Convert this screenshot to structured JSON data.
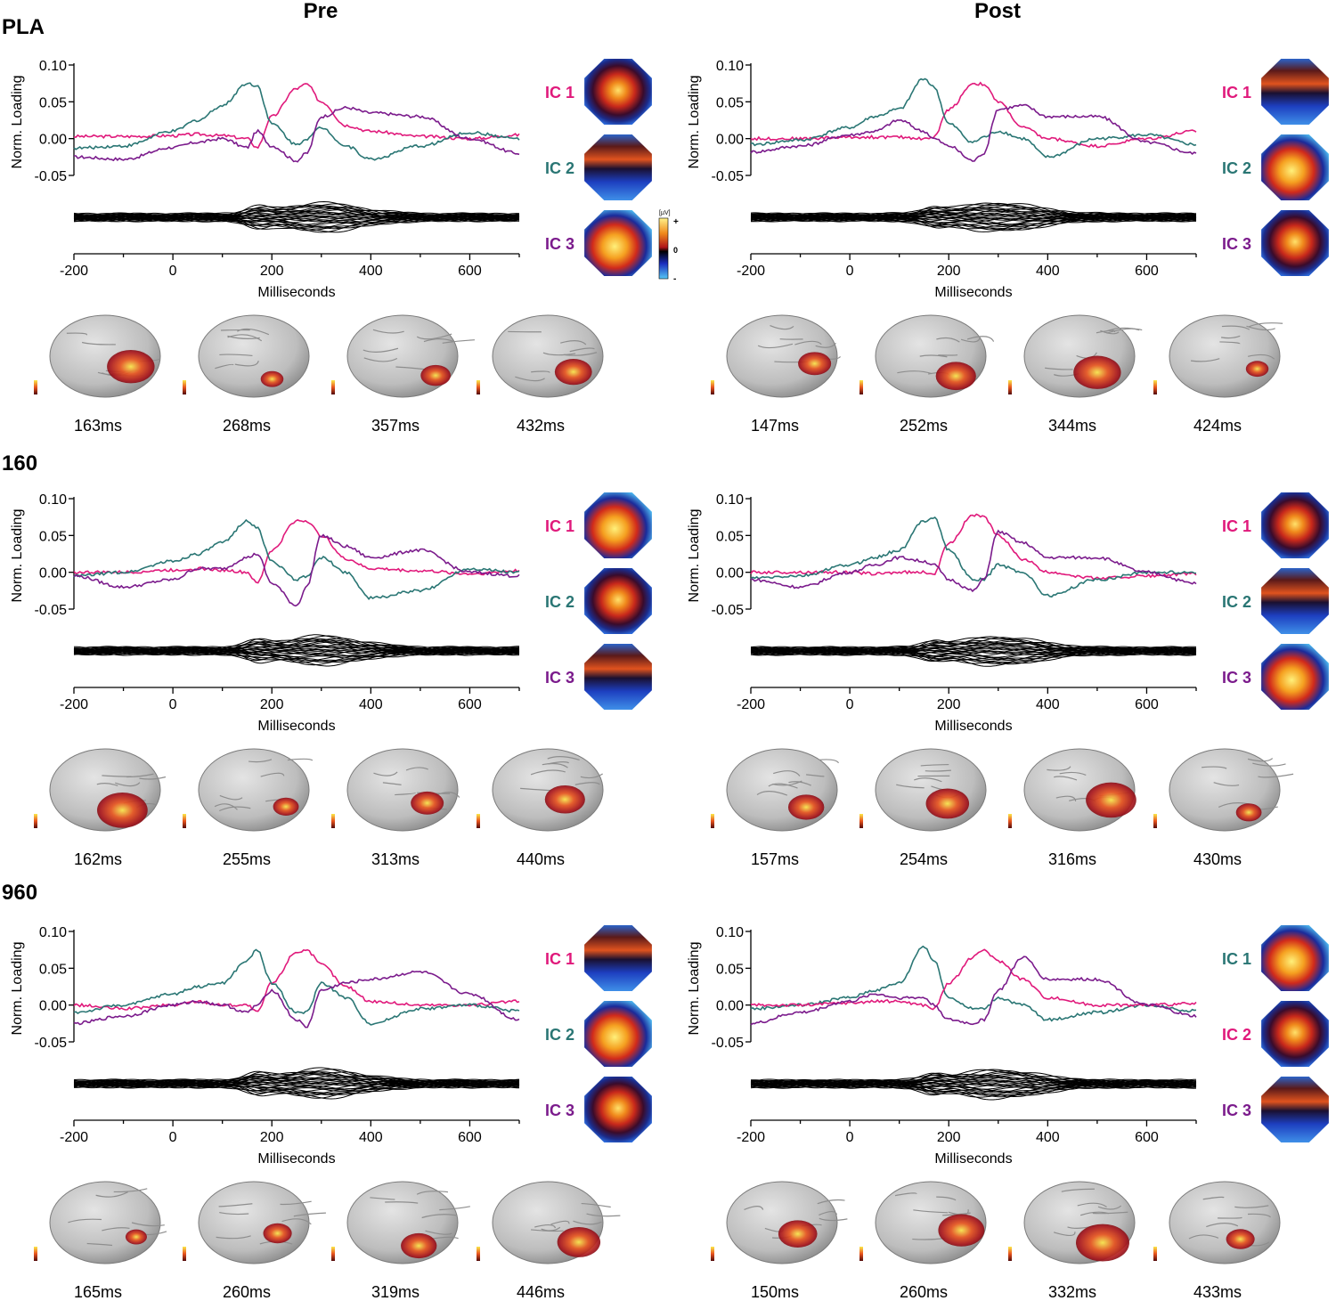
{
  "columns": [
    "Pre",
    "Post"
  ],
  "groups": [
    "PLA",
    "160",
    "960"
  ],
  "axis": {
    "ylabel": "Norm. Loading",
    "xlabel": "Milliseconds",
    "yticks": [
      "0.10",
      "0.05",
      "0.00",
      "-0.05"
    ],
    "xticks": [
      "-200",
      "0",
      "200",
      "400",
      "600"
    ]
  },
  "colorbar": {
    "unit": "[µV]",
    "plus": "+",
    "zero": "0",
    "minus": "-"
  },
  "colors": {
    "ic_pink": "#e0197b",
    "ic_teal": "#2a7674",
    "ic_purple": "#7b1b8c"
  },
  "chart_data": [
    {
      "type": "line",
      "group": "PLA",
      "condition": "Pre",
      "title": "",
      "xlabel": "Milliseconds",
      "ylabel": "Norm. Loading",
      "xlim": [
        -200,
        700
      ],
      "ylim": [
        -0.05,
        0.1
      ],
      "x": [
        -200,
        -100,
        0,
        50,
        100,
        150,
        170,
        200,
        250,
        270,
        300,
        350,
        400,
        500,
        600,
        700
      ],
      "series": [
        {
          "name": "IC 1",
          "color": "pink",
          "values": [
            0.003,
            0.003,
            0.004,
            0.006,
            0.004,
            0.0,
            -0.012,
            0.03,
            0.068,
            0.074,
            0.05,
            0.018,
            0.01,
            0.003,
            0.0,
            0.005
          ]
        },
        {
          "name": "IC 2",
          "color": "teal",
          "values": [
            -0.013,
            -0.01,
            0.01,
            0.025,
            0.045,
            0.075,
            0.072,
            0.02,
            -0.008,
            0.0,
            0.015,
            -0.01,
            -0.028,
            -0.01,
            0.008,
            0.0
          ]
        },
        {
          "name": "IC 3",
          "color": "purple",
          "values": [
            -0.025,
            -0.028,
            -0.012,
            -0.005,
            0.0,
            -0.012,
            0.01,
            -0.01,
            -0.03,
            -0.02,
            0.03,
            0.042,
            0.035,
            0.03,
            0.0,
            -0.02
          ]
        }
      ],
      "ic_labels": [
        {
          "label": "IC 1",
          "color": "pink"
        },
        {
          "label": "IC 2",
          "color": "teal"
        },
        {
          "label": "IC 3",
          "color": "purple"
        }
      ],
      "brain_times": [
        "163ms",
        "268ms",
        "357ms",
        "432ms"
      ]
    },
    {
      "type": "line",
      "group": "PLA",
      "condition": "Post",
      "title": "",
      "xlabel": "Milliseconds",
      "ylabel": "Norm. Loading",
      "xlim": [
        -200,
        700
      ],
      "ylim": [
        -0.05,
        0.1
      ],
      "x": [
        -200,
        -100,
        0,
        50,
        100,
        150,
        170,
        200,
        250,
        270,
        300,
        350,
        400,
        500,
        600,
        700
      ],
      "series": [
        {
          "name": "IC 1",
          "color": "pink",
          "values": [
            0.0,
            0.0,
            0.002,
            0.002,
            0.002,
            0.0,
            0.002,
            0.04,
            0.075,
            0.074,
            0.05,
            0.015,
            0.0,
            -0.01,
            0.0,
            0.01
          ]
        },
        {
          "name": "IC 2",
          "color": "teal",
          "values": [
            -0.008,
            -0.002,
            0.015,
            0.03,
            0.04,
            0.082,
            0.07,
            0.02,
            -0.005,
            0.002,
            0.01,
            0.0,
            -0.025,
            0.0,
            0.005,
            -0.008
          ]
        },
        {
          "name": "IC 3",
          "color": "purple",
          "values": [
            -0.018,
            -0.01,
            0.005,
            0.01,
            0.025,
            0.01,
            0.0,
            -0.01,
            -0.03,
            -0.02,
            0.04,
            0.045,
            0.03,
            0.03,
            -0.005,
            -0.02
          ]
        }
      ],
      "ic_labels": [
        {
          "label": "IC 1",
          "color": "pink"
        },
        {
          "label": "IC 2",
          "color": "teal"
        },
        {
          "label": "IC 3",
          "color": "purple"
        }
      ],
      "brain_times": [
        "147ms",
        "252ms",
        "344ms",
        "424ms"
      ]
    },
    {
      "type": "line",
      "group": "160",
      "condition": "Pre",
      "title": "",
      "xlabel": "Milliseconds",
      "ylabel": "Norm. Loading",
      "xlim": [
        -200,
        700
      ],
      "ylim": [
        -0.05,
        0.1
      ],
      "x": [
        -200,
        -100,
        0,
        50,
        100,
        150,
        170,
        200,
        250,
        270,
        300,
        350,
        400,
        500,
        600,
        700
      ],
      "series": [
        {
          "name": "IC 1",
          "color": "pink",
          "values": [
            0.0,
            0.0,
            0.003,
            0.005,
            0.003,
            0.0,
            -0.015,
            0.03,
            0.07,
            0.07,
            0.05,
            0.018,
            0.005,
            0.002,
            -0.002,
            0.002
          ]
        },
        {
          "name": "IC 2",
          "color": "teal",
          "values": [
            -0.005,
            0.0,
            0.015,
            0.025,
            0.04,
            0.07,
            0.06,
            0.015,
            -0.01,
            -0.005,
            0.02,
            0.0,
            -0.035,
            -0.025,
            0.005,
            0.0
          ]
        },
        {
          "name": "IC 3",
          "color": "purple",
          "values": [
            -0.005,
            -0.02,
            -0.01,
            0.005,
            0.005,
            0.02,
            0.025,
            -0.015,
            -0.045,
            -0.02,
            0.05,
            0.035,
            0.02,
            0.03,
            0.0,
            -0.005
          ]
        }
      ],
      "ic_labels": [
        {
          "label": "IC 1",
          "color": "pink"
        },
        {
          "label": "IC 2",
          "color": "teal"
        },
        {
          "label": "IC 3",
          "color": "purple"
        }
      ],
      "brain_times": [
        "162ms",
        "255ms",
        "313ms",
        "440ms"
      ]
    },
    {
      "type": "line",
      "group": "160",
      "condition": "Post",
      "title": "",
      "xlabel": "Milliseconds",
      "ylabel": "Norm. Loading",
      "xlim": [
        -200,
        700
      ],
      "ylim": [
        -0.05,
        0.1
      ],
      "x": [
        -200,
        -100,
        0,
        50,
        100,
        150,
        170,
        200,
        250,
        270,
        300,
        350,
        400,
        500,
        600,
        700
      ],
      "series": [
        {
          "name": "IC 1",
          "color": "pink",
          "values": [
            0.0,
            0.0,
            0.0,
            -0.002,
            0.0,
            0.0,
            -0.002,
            0.04,
            0.078,
            0.075,
            0.05,
            0.018,
            0.0,
            -0.008,
            -0.005,
            -0.002
          ]
        },
        {
          "name": "IC 2",
          "color": "teal",
          "values": [
            -0.008,
            -0.005,
            0.01,
            0.02,
            0.03,
            0.07,
            0.075,
            0.03,
            -0.01,
            -0.01,
            0.01,
            0.0,
            -0.032,
            -0.01,
            0.0,
            0.0
          ]
        },
        {
          "name": "IC 3",
          "color": "purple",
          "values": [
            -0.01,
            -0.02,
            0.0,
            0.01,
            0.02,
            0.015,
            0.01,
            -0.01,
            -0.025,
            -0.01,
            0.055,
            0.04,
            0.02,
            0.02,
            0.0,
            -0.015
          ]
        }
      ],
      "ic_labels": [
        {
          "label": "IC 1",
          "color": "pink"
        },
        {
          "label": "IC 2",
          "color": "teal"
        },
        {
          "label": "IC 3",
          "color": "purple"
        }
      ],
      "brain_times": [
        "157ms",
        "254ms",
        "316ms",
        "430ms"
      ]
    },
    {
      "type": "line",
      "group": "960",
      "condition": "Pre",
      "title": "",
      "xlabel": "Milliseconds",
      "ylabel": "Norm. Loading",
      "xlim": [
        -200,
        700
      ],
      "ylim": [
        -0.05,
        0.1
      ],
      "x": [
        -200,
        -100,
        0,
        50,
        100,
        150,
        170,
        200,
        250,
        270,
        300,
        350,
        400,
        500,
        600,
        700
      ],
      "series": [
        {
          "name": "IC 1",
          "color": "pink",
          "values": [
            0.0,
            -0.005,
            0.0,
            0.005,
            0.0,
            0.0,
            -0.01,
            0.03,
            0.072,
            0.075,
            0.055,
            0.025,
            0.005,
            0.0,
            0.0,
            0.005
          ]
        },
        {
          "name": "IC 2",
          "color": "teal",
          "values": [
            -0.01,
            0.0,
            0.015,
            0.025,
            0.03,
            0.06,
            0.075,
            0.03,
            -0.01,
            -0.01,
            0.03,
            0.01,
            -0.025,
            -0.005,
            0.0,
            -0.008
          ]
        },
        {
          "name": "IC 3",
          "color": "purple",
          "values": [
            -0.025,
            -0.015,
            0.0,
            0.005,
            0.0,
            -0.01,
            0.0,
            0.02,
            -0.02,
            -0.03,
            0.02,
            0.03,
            0.035,
            0.045,
            0.015,
            -0.02
          ]
        }
      ],
      "ic_labels": [
        {
          "label": "IC 1",
          "color": "pink"
        },
        {
          "label": "IC 2",
          "color": "teal"
        },
        {
          "label": "IC 3",
          "color": "purple"
        }
      ],
      "brain_times": [
        "165ms",
        "260ms",
        "319ms",
        "446ms"
      ]
    },
    {
      "type": "line",
      "group": "960",
      "condition": "Post",
      "title": "",
      "xlabel": "Milliseconds",
      "ylabel": "Norm. Loading",
      "xlim": [
        -200,
        700
      ],
      "ylim": [
        -0.05,
        0.1
      ],
      "x": [
        -200,
        -100,
        0,
        50,
        100,
        150,
        170,
        200,
        250,
        270,
        300,
        350,
        400,
        500,
        600,
        700
      ],
      "series": [
        {
          "name": "IC 1",
          "color": "teal",
          "values": [
            -0.005,
            0.0,
            0.01,
            0.02,
            0.03,
            0.08,
            0.06,
            0.01,
            -0.005,
            -0.005,
            0.01,
            0.0,
            -0.02,
            -0.01,
            0.0,
            -0.008
          ]
        },
        {
          "name": "IC 2",
          "color": "pink",
          "values": [
            0.0,
            0.0,
            0.003,
            0.005,
            0.005,
            0.0,
            -0.005,
            0.03,
            0.065,
            0.075,
            0.06,
            0.035,
            0.01,
            0.0,
            0.0,
            0.002
          ]
        },
        {
          "name": "IC 3",
          "color": "purple",
          "values": [
            -0.025,
            -0.01,
            0.005,
            0.015,
            0.01,
            0.01,
            0.0,
            -0.02,
            -0.025,
            -0.02,
            0.02,
            0.065,
            0.035,
            0.035,
            0.0,
            -0.015
          ]
        }
      ],
      "ic_labels": [
        {
          "label": "IC 1",
          "color": "teal"
        },
        {
          "label": "IC 2",
          "color": "pink"
        },
        {
          "label": "IC 3",
          "color": "purple"
        }
      ],
      "brain_times": [
        "150ms",
        "260ms",
        "332ms",
        "433ms"
      ]
    }
  ]
}
